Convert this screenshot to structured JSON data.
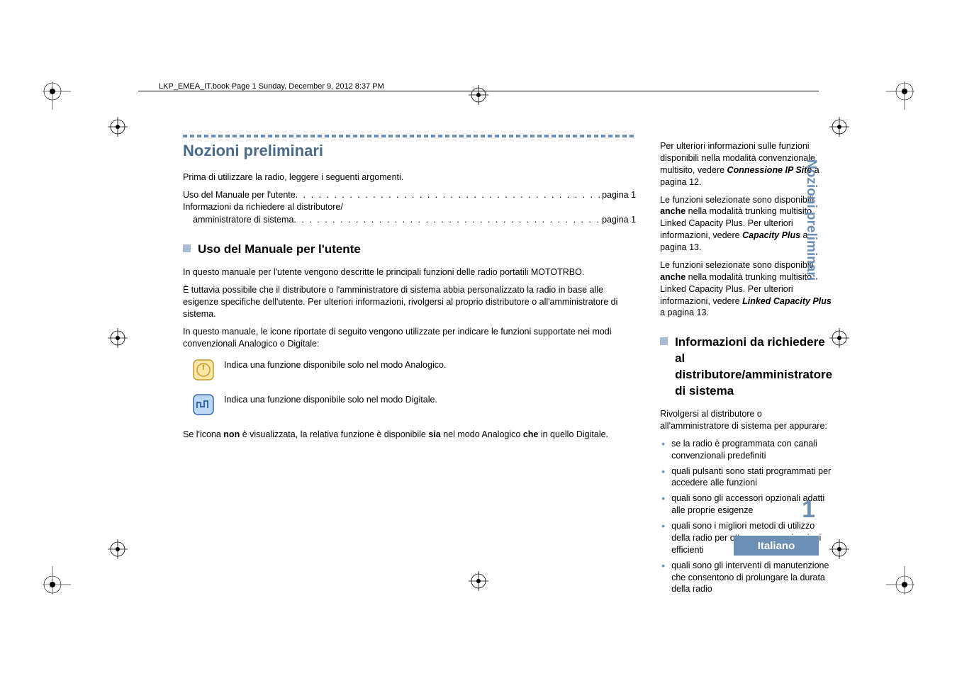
{
  "header": {
    "running_head": "LKP_EMEA_IT.book  Page 1  Sunday, December 9, 2012  8:37 PM"
  },
  "colors": {
    "heading_blue": "#4a6a8a",
    "accent_blue": "#6b8fb5",
    "square_fill": "#a8bdd3",
    "text": "#000000",
    "background": "#ffffff"
  },
  "left_column": {
    "main_title": "Nozioni preliminari",
    "intro": "Prima di utilizzare la radio, leggere i seguenti argomenti.",
    "toc": [
      {
        "label": "Uso del Manuale per l'utente",
        "page": "pagina 1",
        "indent": false
      },
      {
        "label": "Informazioni da richiedere al distributore/",
        "page": "",
        "indent": false
      },
      {
        "label": "amministratore di sistema",
        "page": "pagina 1",
        "indent": true
      }
    ],
    "h2_1": "Uso del Manuale per l'utente",
    "p1": "In questo manuale per l'utente vengono descritte le principali funzioni delle radio portatili MOTOTRBO.",
    "p2": "È tuttavia possibile che il distributore o l'amministratore di sistema abbia personalizzato la radio in base alle esigenze specifiche dell'utente. Per ulteriori informazioni, rivolgersi al proprio distributore o all'amministratore di sistema.",
    "p3": "In questo manuale, le icone riportate di seguito vengono utilizzate per indicare le funzioni supportate nei modi convenzionali Analogico o Digitale:",
    "icon_analog_text": "Indica una funzione disponibile solo nel modo Analogico.",
    "icon_digital_text": "Indica una funzione disponibile solo nel modo Digitale.",
    "p4_pre": "Se l'icona ",
    "p4_b1": "non",
    "p4_mid": " è visualizzata, la relativa funzione è disponibile ",
    "p4_b2": "sia",
    "p4_mid2": " nel modo Analogico ",
    "p4_b3": "che",
    "p4_end": " in quello Digitale."
  },
  "right_column": {
    "p1_pre": "Per ulteriori informazioni sulle funzioni disponibili nella modalità convenzionale multisito, vedere ",
    "p1_link": "Connessione IP Site",
    "p1_post": " a pagina 12.",
    "p2_pre": "Le funzioni selezionate sono disponibili ",
    "p2_b1": "anche",
    "p2_mid": " nella modalità trunking multisito Linked Capacity Plus. Per ulteriori informazioni, vedere ",
    "p2_link": "Capacity Plus",
    "p2_post": " a pagina 13.",
    "p3_pre": "Le funzioni selezionate sono disponibili ",
    "p3_b1": "anche",
    "p3_mid": " nella modalità trunking multisito Linked Capacity Plus. Per ulteriori informazioni, vedere ",
    "p3_link": "Linked Capacity Plus",
    "p3_post": " a pagina 13.",
    "h2": "Informazioni da richiedere al distributore/amministratore di sistema",
    "p4": "Rivolgersi al distributore o all'amministratore di sistema per appurare:",
    "bullets": [
      "se la radio è programmata con canali convenzionali predefiniti",
      "quali pulsanti sono stati programmati per accedere alle funzioni",
      "quali sono gli accessori opzionali adatti alle proprie esigenze",
      "quali sono i migliori metodi di utilizzo della radio per ottenere comunicazioni efficienti",
      "quali sono gli interventi di manutenzione che consentono di prolungare la durata della radio"
    ]
  },
  "side": {
    "tab_text": "Nozioni preliminari",
    "page_number": "1",
    "language": "Italiano"
  }
}
